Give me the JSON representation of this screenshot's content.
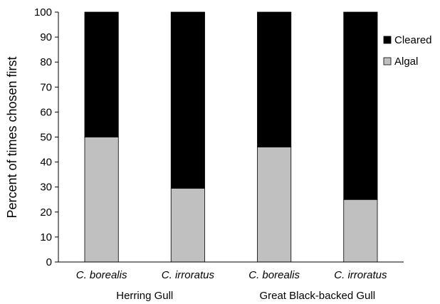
{
  "chart_data": {
    "type": "bar",
    "stacked": true,
    "categories": [
      "C. borealis",
      "C. irroratus",
      "C. borealis",
      "C. irroratus"
    ],
    "groups": [
      {
        "label": "Herring Gull",
        "categories": [
          0,
          1
        ]
      },
      {
        "label": "Great Black-backed Gull",
        "categories": [
          2,
          3
        ]
      }
    ],
    "series": [
      {
        "name": "Algal",
        "values": [
          50,
          29.5,
          46,
          25
        ],
        "color": "#c0c0c0"
      },
      {
        "name": "Cleared",
        "values": [
          50,
          70.5,
          54,
          75
        ],
        "color": "#000000"
      }
    ],
    "legend_order": [
      "Cleared",
      "Algal"
    ],
    "legend_position": "right",
    "ylabel": "Percent of times chosen first",
    "xlabel": "",
    "ylim": [
      0,
      100
    ],
    "yticks": [
      0,
      10,
      20,
      30,
      40,
      50,
      60,
      70,
      80,
      90,
      100
    ],
    "grid": false
  }
}
